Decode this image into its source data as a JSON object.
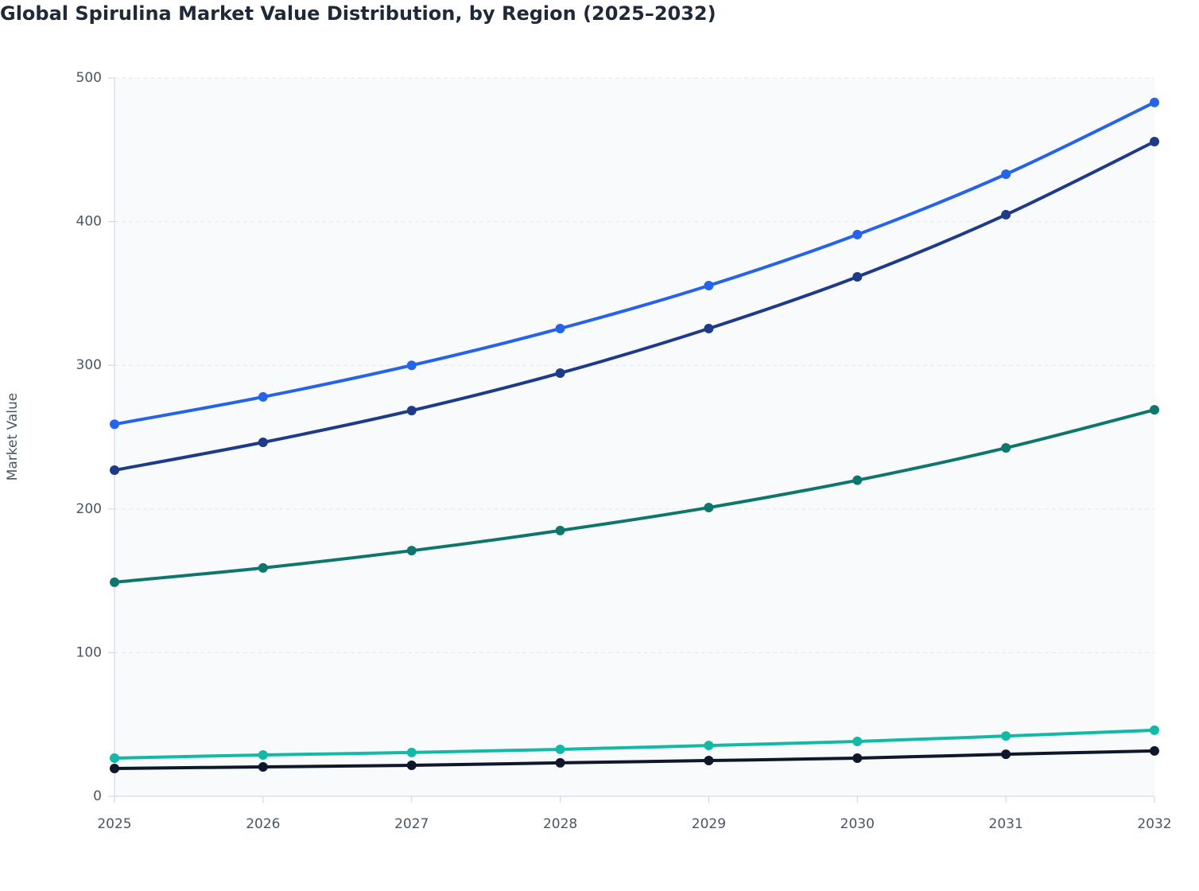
{
  "chart_data": {
    "type": "line",
    "title": "Global Spirulina Market Value Distribution, by Region (2025–2032)",
    "y_label": "Market Value",
    "x": [
      2025,
      2026,
      2027,
      2028,
      2029,
      2030,
      2031,
      2032
    ],
    "xlim": [
      2025,
      2032
    ],
    "xticks": [
      2025,
      2026,
      2027,
      2028,
      2029,
      2030,
      2031,
      2032
    ],
    "ylim": [
      0,
      500
    ],
    "yticks": [
      0,
      100,
      200,
      300,
      400,
      500
    ],
    "grid": true,
    "series": [
      {
        "color": "#2563eb",
        "values": [
          259,
          278,
          300,
          325.6,
          355.5,
          391,
          433,
          483
        ]
      },
      {
        "color": "#1e3a8a",
        "values": [
          227,
          246.4,
          268.5,
          294.6,
          325.6,
          361.6,
          404.8,
          455.7
        ]
      },
      {
        "color": "#0f766e",
        "values": [
          149,
          159,
          171,
          185,
          201,
          220,
          242.5,
          269
        ]
      },
      {
        "color": "#14b8a6",
        "values": [
          26.6,
          28.8,
          30.5,
          32.7,
          35.4,
          38.2,
          42,
          46
        ]
      },
      {
        "color": "#0f172a",
        "values": [
          19.4,
          20.5,
          21.6,
          23.3,
          24.9,
          26.6,
          29.3,
          31.6
        ]
      }
    ]
  }
}
